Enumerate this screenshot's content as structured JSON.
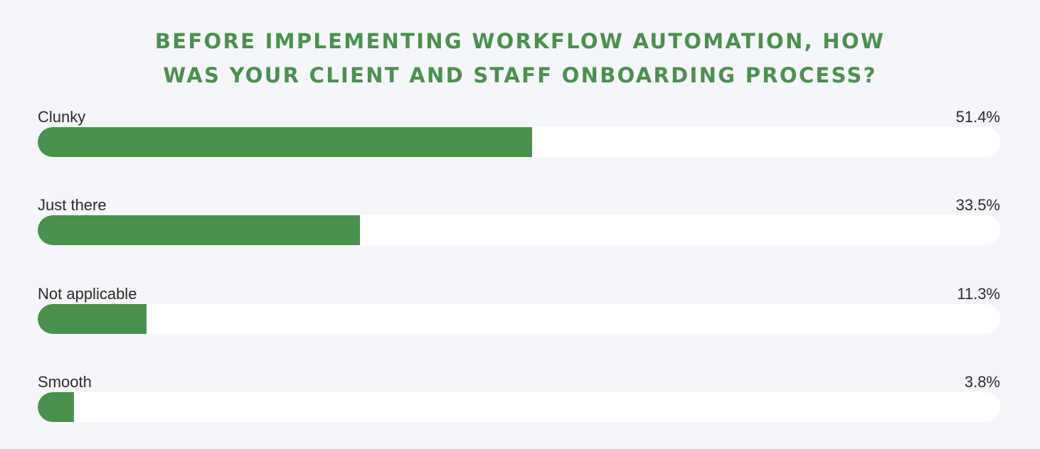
{
  "chart_data": {
    "type": "bar",
    "orientation": "horizontal",
    "title_lines": [
      "BEFORE IMPLEMENTING WORKFLOW AUTOMATION, HOW",
      "WAS YOUR CLIENT AND STAFF ONBOARDING PROCESS?"
    ],
    "categories": [
      "Clunky",
      "Just there",
      "Not applicable",
      "Smooth"
    ],
    "values": [
      51.4,
      33.5,
      11.3,
      3.8
    ],
    "value_labels": [
      "51.4%",
      "33.5%",
      "11.3%",
      "3.8%"
    ],
    "xlim": [
      0,
      100
    ],
    "grid": false,
    "legend": "none",
    "colors": {
      "bar": "#4a914d",
      "track": "#ffffff",
      "title": "#4a914d",
      "background": "#f4f6f9"
    }
  }
}
